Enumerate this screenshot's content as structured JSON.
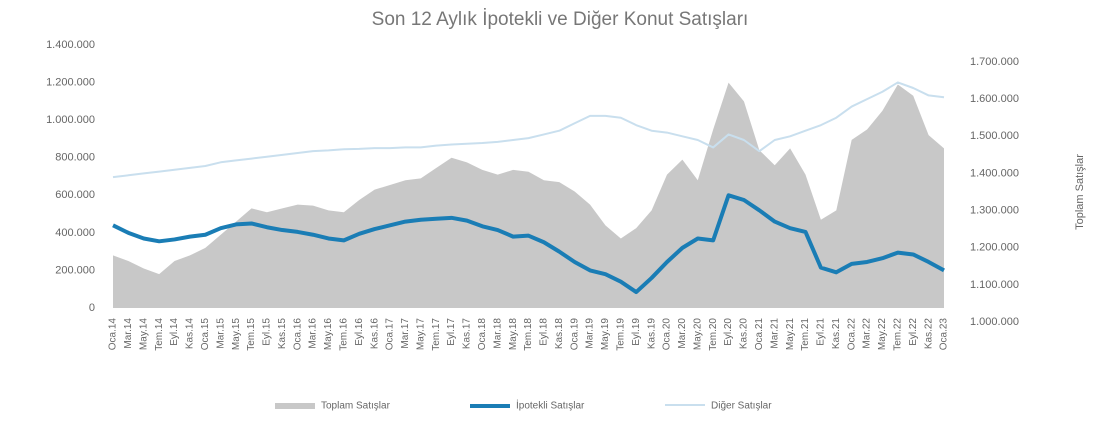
{
  "chart_data": {
    "type": "area-line",
    "title": "Son 12 Aylık İpotekli ve Diğer Konut Satışları",
    "y2_label": "Toplam Satışlar",
    "categories": [
      "Oca.14",
      "Mar.14",
      "May.14",
      "Tem.14",
      "Eyl.14",
      "Kas.14",
      "Oca.15",
      "Mar.15",
      "May.15",
      "Tem.15",
      "Eyl.15",
      "Kas.15",
      "Oca.16",
      "Mar.16",
      "May.16",
      "Tem.16",
      "Eyl.16",
      "Kas.16",
      "Oca.17",
      "Mar.17",
      "May.17",
      "Tem.17",
      "Eyl.17",
      "Kas.17",
      "Oca.18",
      "Mar.18",
      "May.18",
      "Tem.18",
      "Eyl.18",
      "Kas.18",
      "Oca.19",
      "Mar.19",
      "May.19",
      "Tem.19",
      "Eyl.19",
      "Kas.19",
      "Oca.20",
      "Mar.20",
      "May.20",
      "Tem.20",
      "Eyl.20",
      "Kas.20",
      "Oca.21",
      "Mar.21",
      "May.21",
      "Tem.21",
      "Eyl.21",
      "Kas.21",
      "Oca.22",
      "Mar.22",
      "May.22",
      "Tem.22",
      "Eyl.22",
      "Kas.22",
      "Oca.23"
    ],
    "series": [
      {
        "name": "Toplam Satışlar",
        "kind": "area",
        "color": "#c8c8c8",
        "values": [
          280000,
          250000,
          210000,
          180000,
          250000,
          280000,
          320000,
          390000,
          460000,
          530000,
          510000,
          530000,
          550000,
          545000,
          520000,
          510000,
          575000,
          630000,
          655000,
          680000,
          690000,
          745000,
          800000,
          775000,
          735000,
          710000,
          735000,
          725000,
          680000,
          670000,
          620000,
          550000,
          440000,
          370000,
          425000,
          520000,
          710000,
          790000,
          680000,
          950000,
          1200000,
          1100000,
          840000,
          760000,
          850000,
          710000,
          470000,
          520000,
          895000,
          950000,
          1050000,
          1190000,
          1130000,
          920000,
          850000
        ]
      },
      {
        "name": "İpotekli Satışlar",
        "kind": "line",
        "color": "#1a7db5",
        "width": 4,
        "values": [
          440000,
          400000,
          370000,
          355000,
          365000,
          380000,
          390000,
          425000,
          445000,
          450000,
          430000,
          415000,
          405000,
          390000,
          370000,
          360000,
          395000,
          420000,
          440000,
          460000,
          470000,
          475000,
          480000,
          465000,
          435000,
          415000,
          380000,
          385000,
          350000,
          300000,
          245000,
          200000,
          180000,
          140000,
          85000,
          160000,
          245000,
          320000,
          370000,
          360000,
          600000,
          575000,
          520000,
          460000,
          425000,
          405000,
          215000,
          190000,
          235000,
          245000,
          265000,
          295000,
          285000,
          245000,
          200000
        ]
      },
      {
        "name": "Diğer Satışlar",
        "kind": "line",
        "color": "#c9dfee",
        "width": 2,
        "axis": "y2",
        "values": [
          1390000,
          1395000,
          1400000,
          1405000,
          1410000,
          1415000,
          1420000,
          1430000,
          1435000,
          1440000,
          1445000,
          1450000,
          1455000,
          1460000,
          1462000,
          1465000,
          1466000,
          1468000,
          1468000,
          1470000,
          1470000,
          1475000,
          1478000,
          1480000,
          1482000,
          1485000,
          1490000,
          1495000,
          1505000,
          1515000,
          1535000,
          1555000,
          1555000,
          1550000,
          1530000,
          1515000,
          1510000,
          1500000,
          1490000,
          1470000,
          1505000,
          1490000,
          1460000,
          1490000,
          1500000,
          1515000,
          1530000,
          1550000,
          1580000,
          1600000,
          1620000,
          1645000,
          1630000,
          1610000,
          1605000
        ]
      }
    ],
    "ylim": [
      0,
      1400000
    ],
    "yticks": [
      0,
      {
        "value": 200000,
        "label": "200.000"
      },
      {
        "value": 400000,
        "label": "400.000"
      },
      {
        "value": 600000,
        "label": "600.000"
      },
      {
        "value": 800000,
        "label": "800.000"
      },
      {
        "value": 1000000,
        "label": "1.000.000"
      },
      {
        "value": 1200000,
        "label": "1.200.000"
      },
      {
        "value": 1400000,
        "label": "1.400.000"
      }
    ],
    "y2lim": [
      1000000,
      1700000
    ],
    "y2ticks": [
      {
        "value": 1000000,
        "label": "1.000.000"
      },
      {
        "value": 1100000,
        "label": "1.100.000"
      },
      {
        "value": 1200000,
        "label": "1.200.000"
      },
      {
        "value": 1300000,
        "label": "1.300.000"
      },
      {
        "value": 1400000,
        "label": "1.400.000"
      },
      {
        "value": 1500000,
        "label": "1.500.000"
      },
      {
        "value": 1600000,
        "label": "1.600.000"
      },
      {
        "value": 1700000,
        "label": "1.700.000"
      }
    ],
    "legend": "bottom"
  }
}
